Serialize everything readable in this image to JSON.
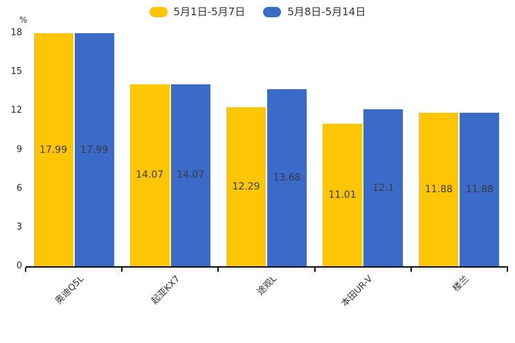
{
  "chart_data": {
    "type": "bar",
    "title": "",
    "ylabel_unit": "%",
    "categories": [
      "奥迪Q5L",
      "起亚KX7",
      "途观L",
      "本田UR-V",
      "楼兰"
    ],
    "series": [
      {
        "name": "5月1日-5月7日",
        "color": "#FDC504",
        "values": [
          17.99,
          14.07,
          12.29,
          11.01,
          11.88
        ]
      },
      {
        "name": "5月8日-5月14日",
        "color": "#3A6BC9",
        "values": [
          17.99,
          14.07,
          13.68,
          12.1,
          11.88
        ]
      }
    ],
    "value_labels": [
      [
        "17.99",
        "14.07",
        "12.29",
        "11.01",
        "11.88"
      ],
      [
        "17.99",
        "14.07",
        "13.68",
        "12.1",
        "11.88"
      ]
    ],
    "y_ticks": [
      "0",
      "3",
      "6",
      "9",
      "12",
      "15",
      "18"
    ],
    "ylim": [
      0,
      18
    ],
    "grid": false,
    "legend_position": "top",
    "axis_color": "#111111",
    "label_color": "#3a3a3a"
  }
}
